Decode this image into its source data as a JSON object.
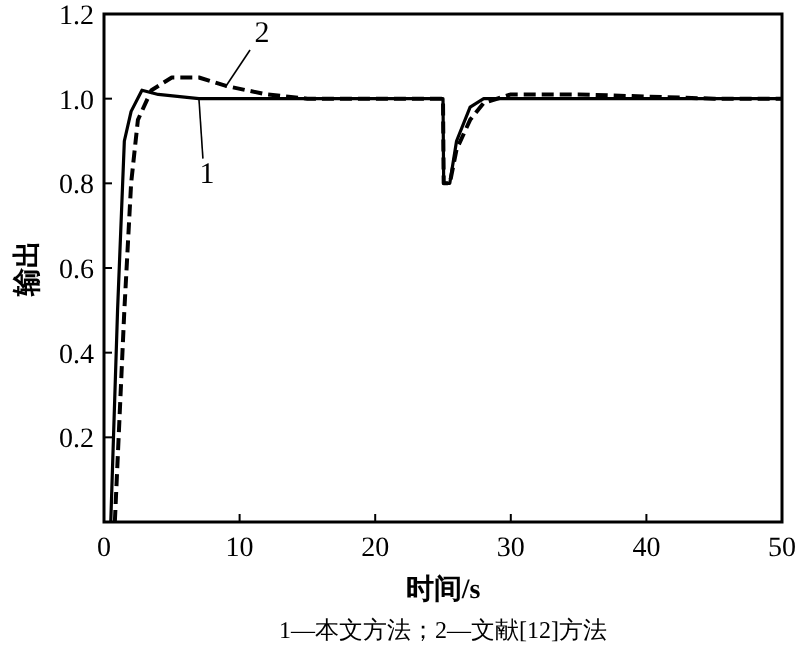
{
  "chart_data": {
    "type": "line",
    "xlabel": "时间/s",
    "ylabel": "输出",
    "annotations": [
      "1—本文方法；2—文献[12]方法"
    ],
    "xlim": [
      0,
      50
    ],
    "ylim": [
      0,
      1.2
    ],
    "xticks": [
      0,
      10,
      20,
      30,
      40,
      50
    ],
    "yticks": [
      0.2,
      0.4,
      0.6,
      0.8,
      {
        "value": 1,
        "label": "1.0"
      },
      1.2
    ],
    "series": [
      {
        "name": "1",
        "color": "#000000",
        "line_style": "solid",
        "x": [
          0.5,
          1,
          1.5,
          2,
          2.8,
          4,
          7,
          25,
          25.05,
          25.5,
          26,
          27,
          28,
          50
        ],
        "values": [
          0,
          0.5,
          0.9,
          0.97,
          1.02,
          1.01,
          1.0,
          1.0,
          0.8,
          0.8,
          0.9,
          0.98,
          1.0,
          1.0
        ]
      },
      {
        "name": "2",
        "color": "#000000",
        "line_style": "dashed",
        "x": [
          0.8,
          1.5,
          2,
          2.5,
          3.5,
          5,
          7,
          9,
          12,
          15,
          25,
          25.05,
          25.5,
          26,
          27,
          28,
          30,
          35,
          45,
          50
        ],
        "values": [
          0,
          0.5,
          0.8,
          0.95,
          1.02,
          1.05,
          1.05,
          1.03,
          1.01,
          1.0,
          1.0,
          0.8,
          0.8,
          0.88,
          0.95,
          0.99,
          1.01,
          1.01,
          1.0,
          1.0
        ]
      }
    ]
  }
}
